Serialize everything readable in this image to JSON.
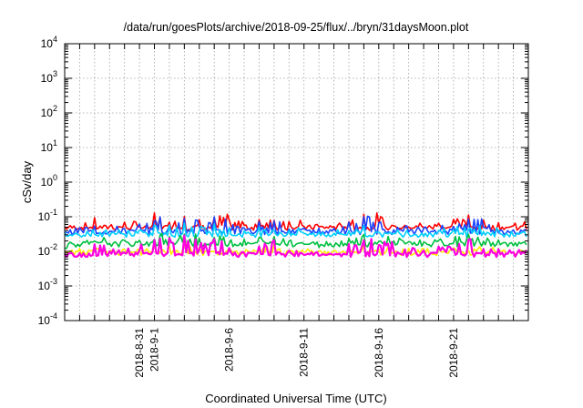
{
  "chart_data": {
    "type": "line",
    "title": "/data/run/goesPlots/archive/2018-09-25/flux/../bryn/31daysMoon.plot",
    "xlabel": "Coordinated Universal Time (UTC)",
    "ylabel": "cSv/day",
    "yscale": "log",
    "ylim": [
      0.0001,
      10000
    ],
    "xlim": [
      "2018-08-26",
      "2018-09-26"
    ],
    "y_ticks": [
      {
        "base": "10",
        "exp": "-4"
      },
      {
        "base": "10",
        "exp": "-3"
      },
      {
        "base": "10",
        "exp": "-2"
      },
      {
        "base": "10",
        "exp": "-1"
      },
      {
        "base": "10",
        "exp": "0"
      },
      {
        "base": "10",
        "exp": "1"
      },
      {
        "base": "10",
        "exp": "2"
      },
      {
        "base": "10",
        "exp": "3"
      },
      {
        "base": "10",
        "exp": "4"
      }
    ],
    "x_tick_labels": [
      {
        "date": "2018-08-31",
        "label": "2018-8-31"
      },
      {
        "date": "2018-09-01",
        "label": "2018-9-1"
      },
      {
        "date": "2018-09-06",
        "label": "2018-9-6"
      },
      {
        "date": "2018-09-11",
        "label": "2018-9-11"
      },
      {
        "date": "2018-09-16",
        "label": "2018-9-16"
      },
      {
        "date": "2018-09-21",
        "label": "2018-9-21"
      }
    ],
    "grid": true,
    "series": [
      {
        "color": "#ff0000",
        "baseline": 0.048,
        "values": [
          0.045,
          0.05,
          0.07,
          0.05,
          0.055,
          0.06,
          0.1,
          0.08,
          0.11,
          0.07,
          0.09,
          0.06,
          0.055,
          0.07,
          0.08,
          0.06,
          0.05,
          0.045,
          0.05,
          0.07,
          0.1,
          0.075,
          0.06,
          0.055,
          0.05,
          0.06,
          0.07,
          0.09,
          0.06,
          0.05,
          0.055
        ]
      },
      {
        "color": "#1a44ff",
        "baseline": 0.036,
        "values": [
          0.035,
          0.04,
          0.05,
          0.04,
          0.042,
          0.048,
          0.08,
          0.065,
          0.09,
          0.055,
          0.075,
          0.048,
          0.042,
          0.055,
          0.065,
          0.048,
          0.04,
          0.036,
          0.04,
          0.055,
          0.08,
          0.06,
          0.048,
          0.042,
          0.038,
          0.045,
          0.055,
          0.07,
          0.048,
          0.04,
          0.042
        ]
      },
      {
        "color": "#00d0ff",
        "baseline": 0.03,
        "values": [
          0.028,
          0.032,
          0.036,
          0.032,
          0.033,
          0.036,
          0.05,
          0.045,
          0.055,
          0.04,
          0.048,
          0.036,
          0.033,
          0.04,
          0.045,
          0.036,
          0.032,
          0.03,
          0.032,
          0.04,
          0.05,
          0.042,
          0.036,
          0.033,
          0.031,
          0.035,
          0.04,
          0.046,
          0.036,
          0.032,
          0.033
        ]
      },
      {
        "color": "#00c040",
        "baseline": 0.016,
        "values": [
          0.014,
          0.016,
          0.02,
          0.016,
          0.017,
          0.018,
          0.025,
          0.022,
          0.026,
          0.02,
          0.023,
          0.018,
          0.017,
          0.02,
          0.022,
          0.018,
          0.016,
          0.015,
          0.016,
          0.02,
          0.025,
          0.021,
          0.018,
          0.017,
          0.016,
          0.018,
          0.02,
          0.023,
          0.018,
          0.016,
          0.017
        ]
      },
      {
        "color": "#ffee00",
        "baseline": 0.009,
        "values": [
          0.008,
          0.009,
          0.011,
          0.009,
          0.0095,
          0.01,
          0.012,
          0.011,
          0.013,
          0.01,
          0.011,
          0.01,
          0.0095,
          0.011,
          0.012,
          0.01,
          0.009,
          0.0085,
          0.009,
          0.011,
          0.012,
          0.011,
          0.01,
          0.0095,
          0.009,
          0.01,
          0.011,
          0.012,
          0.01,
          0.009,
          0.0095
        ]
      },
      {
        "color": "#ff00e0",
        "baseline": 0.008,
        "values": [
          0.007,
          0.008,
          0.015,
          0.009,
          0.01,
          0.012,
          0.02,
          0.018,
          0.022,
          0.013,
          0.018,
          0.011,
          0.01,
          0.014,
          0.017,
          0.011,
          0.009,
          0.008,
          0.009,
          0.013,
          0.02,
          0.015,
          0.011,
          0.01,
          0.009,
          0.011,
          0.013,
          0.018,
          0.011,
          0.009,
          0.01
        ]
      }
    ]
  }
}
